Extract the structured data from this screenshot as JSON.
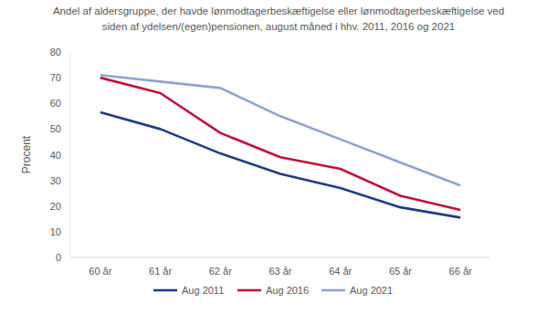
{
  "chart_data": {
    "type": "line",
    "title": "Andel af aldersgruppe, der havde lønmodtagerbeskæftigelse eller lønmodtagerbeskæftigelse ved siden af ydelsen/(egen)pensionen, august måned i hhv. 2011, 2016 og 2021",
    "y_label": "Procent",
    "categories": [
      "60 år",
      "61 år",
      "62 år",
      "63 år",
      "64 år",
      "65 år",
      "66 år"
    ],
    "series": [
      {
        "name": "Aug 2011",
        "color": "#203c86",
        "values": [
          56.5,
          50,
          40.5,
          32.5,
          27,
          19.5,
          15.5
        ]
      },
      {
        "name": "Aug 2016",
        "color": "#c0143c",
        "values": [
          70,
          64,
          48.5,
          39,
          34.5,
          24,
          18.5
        ]
      },
      {
        "name": "Aug 2021",
        "color": "#8fa3cf",
        "values": [
          71,
          68.5,
          66,
          55,
          46,
          37,
          28
        ]
      }
    ],
    "ylim": [
      0,
      80
    ],
    "yticks": [
      0,
      10,
      20,
      30,
      40,
      50,
      60,
      70,
      80
    ],
    "grid": false,
    "legend": "bottom"
  }
}
